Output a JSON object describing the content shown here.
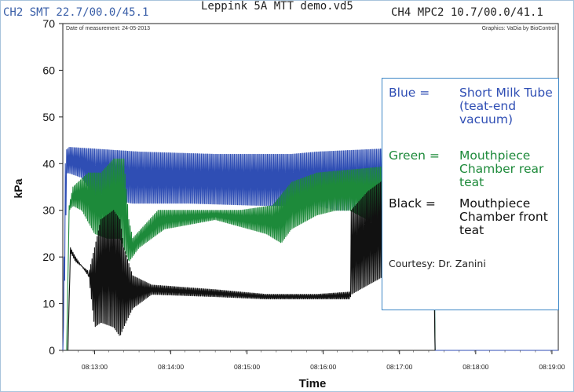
{
  "header": {
    "left": "CH2 SMT 22.7/00.0/45.1",
    "center": "Leppink 5A MTT demo.vd5",
    "right": "CH4 MPC2 10.7/00.0/41.1"
  },
  "chart_data": {
    "type": "line",
    "title": "",
    "xlabel": "Time",
    "ylabel": "kPa",
    "ylim": [
      0,
      70
    ],
    "yticks": [
      "0",
      "10",
      "20",
      "30",
      "40",
      "50",
      "60",
      "70"
    ],
    "xlim": [
      "08:12:35",
      "08:19:05"
    ],
    "xticks": [
      "08:13:00",
      "08:14:00",
      "08:15:00",
      "08:16:00",
      "08:17:00",
      "08:18:00",
      "08:19:00"
    ],
    "top_left_note": "Date of measurement: 24-05-2013",
    "top_right_note": "Graphics: VaDia by BioControl",
    "series": [
      {
        "name": "Short Milk Tube (teat-end vacuum)",
        "color": "#2f4eb4",
        "upper": [
          [
            0,
            0
          ],
          [
            2,
            40
          ],
          [
            3,
            43
          ],
          [
            5,
            43.5
          ],
          [
            60,
            42.5
          ],
          [
            120,
            42
          ],
          [
            180,
            42
          ],
          [
            200,
            42.5
          ],
          [
            240,
            43
          ],
          [
            280,
            43.5
          ],
          [
            292,
            43.5
          ],
          [
            293,
            0
          ],
          [
            390,
            0
          ]
        ],
        "lower": [
          [
            0,
            0
          ],
          [
            2,
            20
          ],
          [
            3,
            38
          ],
          [
            5,
            38
          ],
          [
            15,
            37
          ],
          [
            25,
            33
          ],
          [
            35,
            34
          ],
          [
            45,
            32
          ],
          [
            55,
            31.5
          ],
          [
            100,
            31.5
          ],
          [
            160,
            31
          ],
          [
            200,
            31
          ],
          [
            215,
            30
          ],
          [
            225,
            30
          ],
          [
            226,
            30.5
          ],
          [
            260,
            31
          ],
          [
            292,
            31
          ],
          [
            293,
            0
          ],
          [
            390,
            0
          ]
        ]
      },
      {
        "name": "Mouthpiece Chamber rear teat",
        "color": "#1d8a3a",
        "upper": [
          [
            3,
            0
          ],
          [
            5,
            31
          ],
          [
            8,
            35
          ],
          [
            20,
            38
          ],
          [
            30,
            38
          ],
          [
            40,
            41
          ],
          [
            48,
            41
          ],
          [
            52,
            28
          ],
          [
            55,
            24
          ],
          [
            75,
            30
          ],
          [
            100,
            30
          ],
          [
            140,
            30
          ],
          [
            165,
            31
          ],
          [
            180,
            36
          ],
          [
            200,
            38
          ],
          [
            240,
            39
          ],
          [
            280,
            40
          ],
          [
            292,
            41
          ],
          [
            293,
            0
          ]
        ],
        "lower": [
          [
            3,
            0
          ],
          [
            5,
            30
          ],
          [
            8,
            31
          ],
          [
            15,
            30
          ],
          [
            25,
            25
          ],
          [
            35,
            24
          ],
          [
            45,
            24
          ],
          [
            52,
            19
          ],
          [
            60,
            22
          ],
          [
            80,
            26
          ],
          [
            120,
            28
          ],
          [
            160,
            25
          ],
          [
            172,
            23
          ],
          [
            180,
            26
          ],
          [
            200,
            29
          ],
          [
            215,
            30
          ],
          [
            225,
            30
          ],
          [
            226,
            30
          ],
          [
            240,
            28
          ],
          [
            260,
            27
          ],
          [
            280,
            27
          ],
          [
            292,
            28
          ],
          [
            293,
            0
          ]
        ]
      },
      {
        "name": "Mouthpiece Chamber front teat",
        "color": "#111111",
        "upper": [
          [
            4,
            0
          ],
          [
            6,
            22
          ],
          [
            10,
            20
          ],
          [
            20,
            16
          ],
          [
            30,
            28
          ],
          [
            40,
            30
          ],
          [
            45,
            28
          ],
          [
            48,
            22
          ],
          [
            55,
            16
          ],
          [
            70,
            14
          ],
          [
            120,
            13
          ],
          [
            160,
            12
          ],
          [
            200,
            12
          ],
          [
            226,
            12.5
          ],
          [
            227,
            30
          ],
          [
            240,
            34
          ],
          [
            260,
            38
          ],
          [
            280,
            40
          ],
          [
            290,
            43
          ],
          [
            292,
            43
          ],
          [
            293,
            0
          ]
        ],
        "lower": [
          [
            4,
            0
          ],
          [
            6,
            21
          ],
          [
            10,
            19
          ],
          [
            20,
            17
          ],
          [
            25,
            5
          ],
          [
            30,
            6
          ],
          [
            40,
            5
          ],
          [
            45,
            3
          ],
          [
            48,
            5
          ],
          [
            55,
            9
          ],
          [
            70,
            12
          ],
          [
            120,
            11.5
          ],
          [
            160,
            11
          ],
          [
            200,
            11
          ],
          [
            226,
            11
          ],
          [
            227,
            12
          ],
          [
            240,
            14
          ],
          [
            260,
            17
          ],
          [
            280,
            18
          ],
          [
            292,
            18
          ],
          [
            293,
            0
          ]
        ]
      }
    ]
  },
  "legend": {
    "entries": [
      {
        "key": "Blue =",
        "desc": "Short Milk Tube (teat-end vacuum)",
        "color": "#2f4eb4"
      },
      {
        "key": "Green =",
        "desc": "Mouthpiece Chamber rear teat",
        "color": "#1d8a3a"
      },
      {
        "key": "Black =",
        "desc": "Mouthpiece Chamber front teat",
        "color": "#111111"
      }
    ],
    "courtesy": "Courtesy: Dr. Zanini"
  }
}
